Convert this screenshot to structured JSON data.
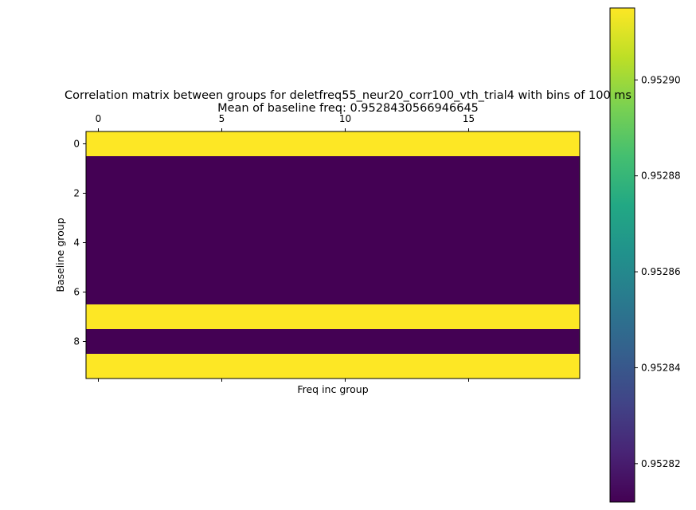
{
  "chart_data": {
    "type": "heatmap",
    "title_line1": "Correlation matrix between groups for deletfreq55_neur20_corr100_vth_trial4 with bins of 100 ms",
    "title_line2": "Mean of baseline freq: 0.9528430566946645",
    "xlabel": "Freq inc group",
    "ylabel": "Baseline group",
    "x_ticks": [
      "0",
      "5",
      "10",
      "15"
    ],
    "x_tick_values": [
      0,
      5,
      10,
      15
    ],
    "y_ticks": [
      "0",
      "2",
      "4",
      "6",
      "8"
    ],
    "y_tick_values": [
      0,
      2,
      4,
      6,
      8
    ],
    "n_cols": 20,
    "n_rows": 10,
    "row_values": [
      0.952915,
      0.952812,
      0.952812,
      0.952812,
      0.952812,
      0.952812,
      0.952812,
      0.952915,
      0.952812,
      0.952915
    ],
    "colormap": "viridis",
    "colorbar": {
      "vmin": 0.952812,
      "vmax": 0.952915,
      "ticks": [
        "0.95282",
        "0.95284",
        "0.95286",
        "0.95288",
        "0.95290"
      ],
      "tick_values": [
        0.95282,
        0.95284,
        0.95286,
        0.95288,
        0.9529
      ]
    },
    "grid": false
  }
}
